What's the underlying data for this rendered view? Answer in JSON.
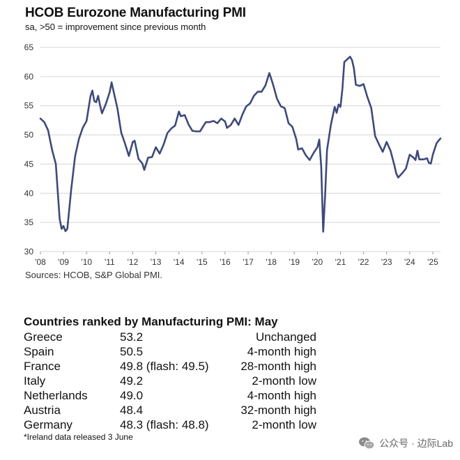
{
  "title": "HCOB Eurozone Manufacturing  PMI",
  "subtitle": "sa, >50 = improvement  since previous  month",
  "source": "Sources: HCOB, S&P Global PMI.",
  "chart_data": {
    "type": "line",
    "title": "HCOB Eurozone Manufacturing  PMI",
    "subtitle": "sa, >50 = improvement  since previous  month",
    "xlabel": "",
    "ylabel": "",
    "ylim": [
      30,
      65
    ],
    "xlim": [
      "2008-01",
      "2025-05"
    ],
    "grid": true,
    "yticks": [
      "30",
      "35",
      "40",
      "45",
      "50",
      "55",
      "60",
      "65"
    ],
    "xticks": [
      "'08",
      "'09",
      "'10",
      "'11",
      "'12",
      "'13",
      "'14",
      "'15",
      "'16",
      "'17",
      "'18",
      "'19",
      "'20",
      "'21",
      "'22",
      "'23",
      "'24",
      "'25"
    ],
    "series": [
      {
        "name": "",
        "color": "#3d4a7a",
        "points": [
          [
            "2008-01",
            52.8
          ],
          [
            "2008-03",
            52.2
          ],
          [
            "2008-05",
            50.8
          ],
          [
            "2008-07",
            47.5
          ],
          [
            "2008-09",
            45.0
          ],
          [
            "2008-11",
            35.6
          ],
          [
            "2008-12",
            33.9
          ],
          [
            "2009-01",
            34.4
          ],
          [
            "2009-02",
            33.5
          ],
          [
            "2009-03",
            33.9
          ],
          [
            "2009-05",
            40.7
          ],
          [
            "2009-07",
            46.3
          ],
          [
            "2009-09",
            49.3
          ],
          [
            "2009-11",
            51.2
          ],
          [
            "2010-01",
            52.4
          ],
          [
            "2010-03",
            56.6
          ],
          [
            "2010-04",
            57.6
          ],
          [
            "2010-05",
            55.8
          ],
          [
            "2010-06",
            55.6
          ],
          [
            "2010-07",
            56.7
          ],
          [
            "2010-08",
            55.1
          ],
          [
            "2010-09",
            53.7
          ],
          [
            "2010-11",
            55.3
          ],
          [
            "2011-01",
            57.3
          ],
          [
            "2011-02",
            59.0
          ],
          [
            "2011-03",
            57.5
          ],
          [
            "2011-05",
            54.6
          ],
          [
            "2011-07",
            50.4
          ],
          [
            "2011-09",
            48.5
          ],
          [
            "2011-11",
            46.4
          ],
          [
            "2012-01",
            48.8
          ],
          [
            "2012-02",
            49.0
          ],
          [
            "2012-04",
            45.9
          ],
          [
            "2012-06",
            45.1
          ],
          [
            "2012-07",
            44.0
          ],
          [
            "2012-09",
            46.1
          ],
          [
            "2012-11",
            46.2
          ],
          [
            "2013-01",
            47.9
          ],
          [
            "2013-03",
            46.8
          ],
          [
            "2013-05",
            48.3
          ],
          [
            "2013-07",
            50.3
          ],
          [
            "2013-09",
            51.1
          ],
          [
            "2013-11",
            51.6
          ],
          [
            "2014-01",
            54.0
          ],
          [
            "2014-02",
            53.2
          ],
          [
            "2014-04",
            53.4
          ],
          [
            "2014-06",
            51.8
          ],
          [
            "2014-08",
            50.7
          ],
          [
            "2014-10",
            50.6
          ],
          [
            "2014-12",
            50.6
          ],
          [
            "2015-03",
            52.2
          ],
          [
            "2015-05",
            52.2
          ],
          [
            "2015-07",
            52.4
          ],
          [
            "2015-09",
            52.0
          ],
          [
            "2015-11",
            52.8
          ],
          [
            "2016-01",
            52.3
          ],
          [
            "2016-02",
            51.2
          ],
          [
            "2016-04",
            51.7
          ],
          [
            "2016-06",
            52.8
          ],
          [
            "2016-08",
            51.7
          ],
          [
            "2016-10",
            53.5
          ],
          [
            "2016-12",
            54.9
          ],
          [
            "2017-02",
            55.4
          ],
          [
            "2017-04",
            56.7
          ],
          [
            "2017-06",
            57.4
          ],
          [
            "2017-08",
            57.4
          ],
          [
            "2017-10",
            58.5
          ],
          [
            "2017-12",
            60.6
          ],
          [
            "2018-01",
            59.6
          ],
          [
            "2018-02",
            58.6
          ],
          [
            "2018-04",
            56.2
          ],
          [
            "2018-06",
            54.9
          ],
          [
            "2018-08",
            54.6
          ],
          [
            "2018-10",
            52.0
          ],
          [
            "2018-12",
            51.4
          ],
          [
            "2019-02",
            49.3
          ],
          [
            "2019-03",
            47.5
          ],
          [
            "2019-05",
            47.7
          ],
          [
            "2019-07",
            46.5
          ],
          [
            "2019-09",
            45.7
          ],
          [
            "2019-11",
            46.9
          ],
          [
            "2020-01",
            47.9
          ],
          [
            "2020-02",
            49.2
          ],
          [
            "2020-03",
            44.5
          ],
          [
            "2020-04",
            33.4
          ],
          [
            "2020-05",
            39.4
          ],
          [
            "2020-06",
            47.4
          ],
          [
            "2020-08",
            51.7
          ],
          [
            "2020-10",
            54.8
          ],
          [
            "2020-11",
            53.8
          ],
          [
            "2020-12",
            55.2
          ],
          [
            "2021-01",
            54.8
          ],
          [
            "2021-02",
            57.9
          ],
          [
            "2021-03",
            62.5
          ],
          [
            "2021-05",
            63.1
          ],
          [
            "2021-06",
            63.4
          ],
          [
            "2021-07",
            62.8
          ],
          [
            "2021-08",
            61.4
          ],
          [
            "2021-09",
            58.6
          ],
          [
            "2021-11",
            58.4
          ],
          [
            "2022-01",
            58.7
          ],
          [
            "2022-03",
            56.5
          ],
          [
            "2022-05",
            54.6
          ],
          [
            "2022-07",
            49.8
          ],
          [
            "2022-09",
            48.4
          ],
          [
            "2022-11",
            47.1
          ],
          [
            "2023-01",
            48.8
          ],
          [
            "2023-03",
            47.3
          ],
          [
            "2023-05",
            44.8
          ],
          [
            "2023-06",
            43.4
          ],
          [
            "2023-07",
            42.7
          ],
          [
            "2023-09",
            43.4
          ],
          [
            "2023-11",
            44.2
          ],
          [
            "2024-01",
            46.6
          ],
          [
            "2024-03",
            46.1
          ],
          [
            "2024-04",
            45.7
          ],
          [
            "2024-05",
            47.3
          ],
          [
            "2024-06",
            45.8
          ],
          [
            "2024-08",
            45.8
          ],
          [
            "2024-10",
            46.0
          ],
          [
            "2024-11",
            45.2
          ],
          [
            "2024-12",
            45.1
          ],
          [
            "2025-01",
            46.6
          ],
          [
            "2025-02",
            47.6
          ],
          [
            "2025-03",
            48.6
          ],
          [
            "2025-04",
            49.0
          ],
          [
            "2025-05",
            49.4
          ]
        ]
      }
    ]
  },
  "ranking": {
    "title": "Countries ranked by Manufacturing PMI: May",
    "rows": [
      {
        "country": "Greece",
        "value": "53.2",
        "description": "Unchanged"
      },
      {
        "country": "Spain",
        "value": "50.5",
        "description": "4-month high"
      },
      {
        "country": "France",
        "value": "49.8 (flash: 49.5)",
        "description": "28-month high"
      },
      {
        "country": "Italy",
        "value": "49.2",
        "description": "2-month low"
      },
      {
        "country": "Netherlands",
        "value": "49.0",
        "description": "4-month high"
      },
      {
        "country": "Austria",
        "value": "48.4",
        "description": "32-month high"
      },
      {
        "country": "Germany",
        "value": "48.3 (flash: 48.8)",
        "description": "2-month low"
      }
    ],
    "footnote": "*Ireland data released 3 June"
  },
  "watermark": {
    "text": "公众号 · 边际Lab",
    "icon": "wechat-icon"
  }
}
